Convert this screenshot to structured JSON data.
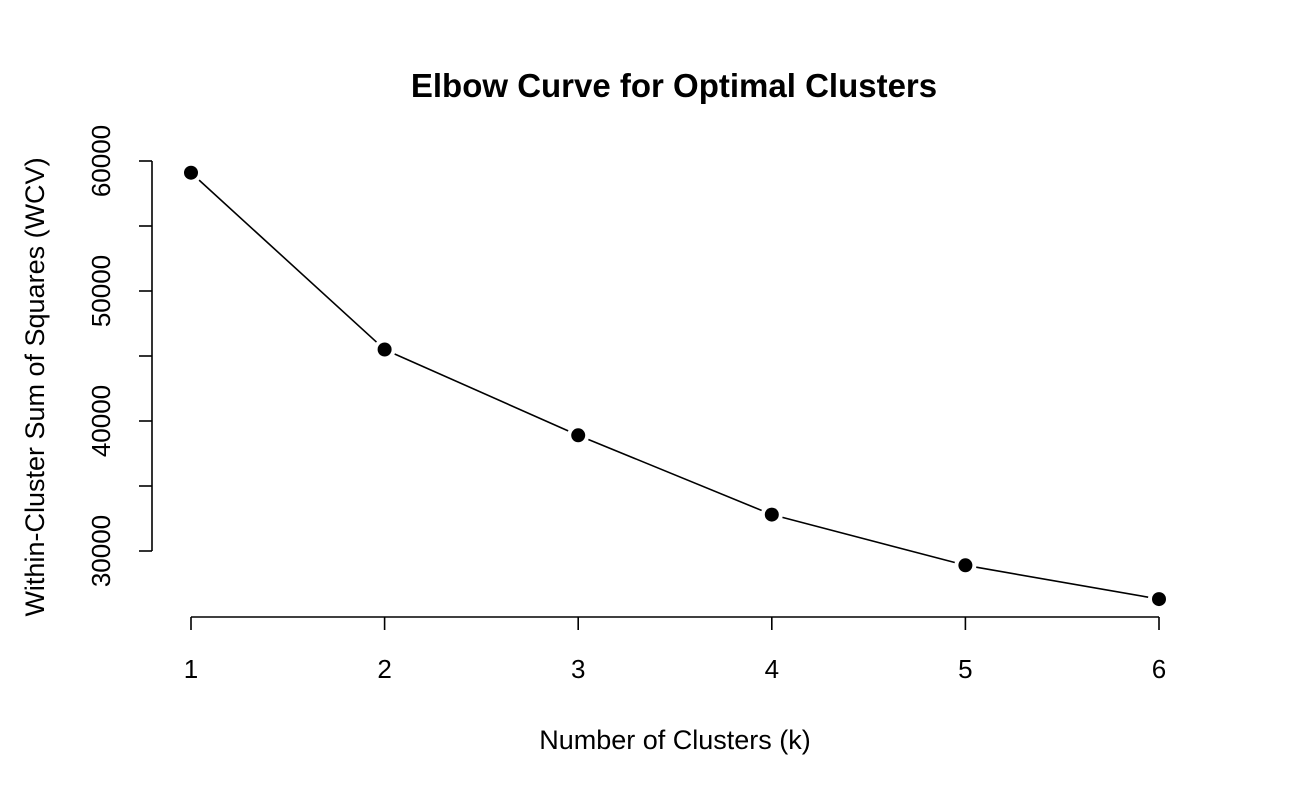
{
  "chart_data": {
    "type": "line",
    "title": "Elbow Curve for Optimal Clusters",
    "xlabel": "Number of Clusters (k)",
    "ylabel": "Within-Cluster Sum of Squares (WCV)",
    "x": [
      1,
      2,
      3,
      4,
      5,
      6
    ],
    "values": [
      59100,
      45500,
      38900,
      32800,
      28900,
      26300
    ],
    "x_ticks": [
      "1",
      "2",
      "3",
      "4",
      "5",
      "6"
    ],
    "y_ticks": [
      "30000",
      "40000",
      "50000",
      "60000"
    ],
    "y_tick_values": [
      30000,
      35000,
      40000,
      45000,
      50000,
      55000,
      60000
    ],
    "xlim": [
      1,
      6
    ],
    "ylim": [
      26300,
      59100
    ],
    "grid": false,
    "legend": "none",
    "line_style": "lines-and-points",
    "colors": {
      "line": "#000000",
      "points": "#000000",
      "background": "#ffffff"
    }
  }
}
